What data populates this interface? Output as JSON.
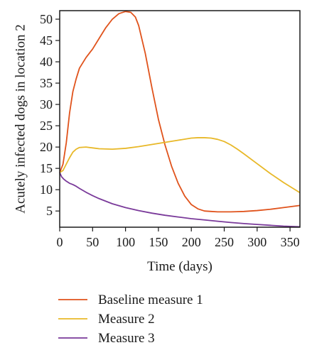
{
  "chart_data": {
    "type": "line",
    "xlabel": "Time (days)",
    "ylabel": "Acutely infected dogs in location 2",
    "xlim": [
      0,
      365
    ],
    "ylim": [
      1.2,
      52
    ],
    "xticks": [
      0,
      50,
      100,
      150,
      200,
      250,
      300,
      350
    ],
    "yticks": [
      5,
      10,
      15,
      20,
      25,
      30,
      35,
      40,
      45,
      50
    ],
    "grid": false,
    "legend_position": "bottom",
    "series": [
      {
        "name": "Baseline measure 1",
        "color": "#e0531c",
        "x": [
          0,
          5,
          10,
          15,
          20,
          25,
          30,
          40,
          50,
          60,
          70,
          80,
          90,
          100,
          108,
          115,
          120,
          130,
          140,
          150,
          160,
          170,
          180,
          190,
          200,
          210,
          220,
          230,
          240,
          250,
          260,
          270,
          280,
          300,
          320,
          340,
          365
        ],
        "y": [
          14,
          16,
          21,
          28,
          33,
          36,
          38.5,
          41,
          43,
          45.5,
          48,
          50,
          51.3,
          51.8,
          51.6,
          50.5,
          48.5,
          42,
          34,
          26.5,
          20.5,
          15.5,
          11.5,
          8.5,
          6.5,
          5.5,
          5,
          4.9,
          4.8,
          4.8,
          4.8,
          4.85,
          4.9,
          5.1,
          5.4,
          5.8,
          6.3
        ]
      },
      {
        "name": "Measure 2",
        "color": "#e8b828",
        "x": [
          0,
          5,
          10,
          15,
          20,
          25,
          30,
          40,
          50,
          60,
          80,
          100,
          120,
          140,
          160,
          180,
          200,
          210,
          220,
          230,
          240,
          250,
          260,
          270,
          280,
          300,
          320,
          340,
          365
        ],
        "y": [
          14,
          14.5,
          16,
          17.5,
          18.8,
          19.5,
          19.9,
          20,
          19.8,
          19.6,
          19.5,
          19.7,
          20.1,
          20.6,
          21.1,
          21.6,
          22.1,
          22.2,
          22.2,
          22.1,
          21.8,
          21.3,
          20.5,
          19.5,
          18.4,
          16.1,
          13.8,
          11.7,
          9.3
        ]
      },
      {
        "name": "Measure 3",
        "color": "#7a3a9a",
        "x": [
          0,
          3,
          6,
          10,
          15,
          20,
          25,
          30,
          40,
          50,
          60,
          80,
          100,
          120,
          140,
          160,
          180,
          200,
          220,
          240,
          260,
          280,
          300,
          320,
          340,
          365
        ],
        "y": [
          14,
          13,
          12.5,
          12,
          11.5,
          11.2,
          10.8,
          10.3,
          9.4,
          8.6,
          7.9,
          6.7,
          5.8,
          5.1,
          4.5,
          4,
          3.6,
          3.2,
          2.9,
          2.6,
          2.3,
          2.05,
          1.85,
          1.65,
          1.45,
          1.3
        ]
      }
    ]
  }
}
